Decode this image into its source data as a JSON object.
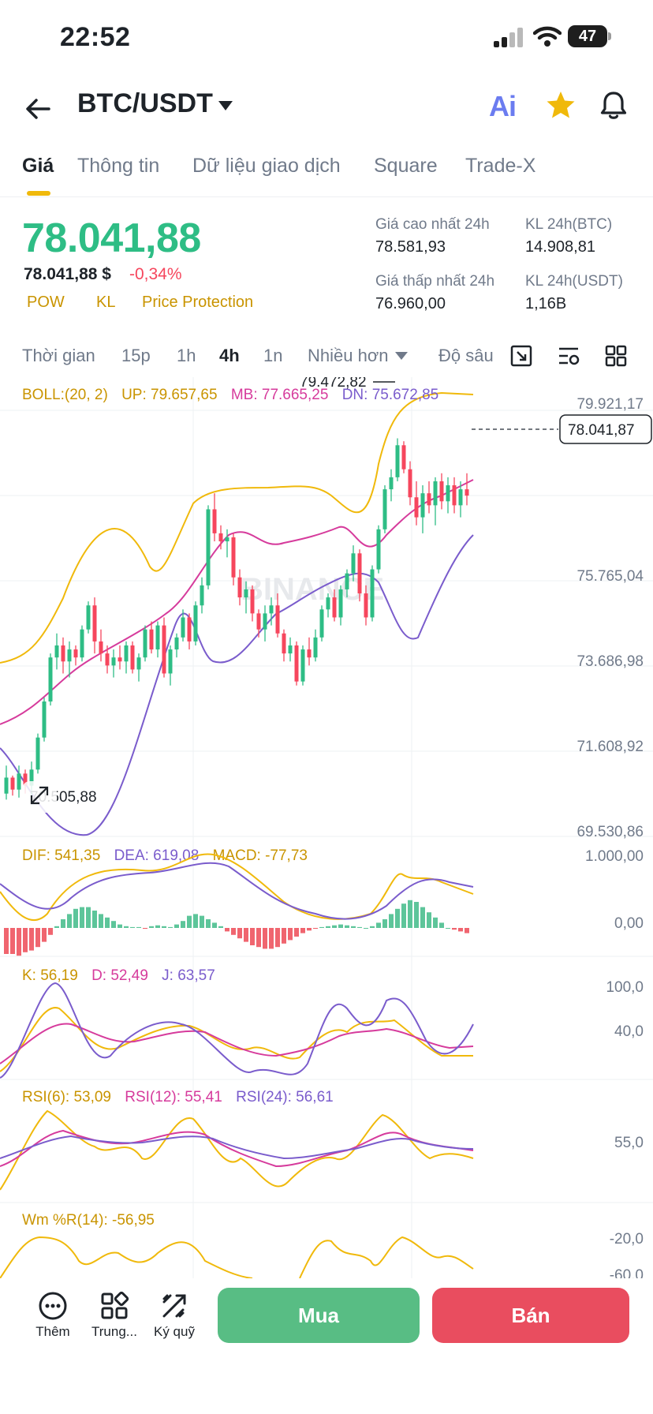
{
  "status_bar": {
    "time": "22:52",
    "battery": "47"
  },
  "header": {
    "pair": "BTC/USDT"
  },
  "tabs": [
    {
      "label": "Giá",
      "active": true
    },
    {
      "label": "Thông tin"
    },
    {
      "label": "Dữ liệu giao dịch"
    },
    {
      "label": "Square"
    },
    {
      "label": "Trade-X"
    }
  ],
  "price": {
    "last": "78.041,88",
    "fiat": "78.041,88 $",
    "change": "-0,34%",
    "chips": [
      "POW",
      "KL",
      "Price Protection"
    ],
    "stats": {
      "high_label": "Giá cao nhất 24h",
      "high": "78.581,93",
      "low_label": "Giá thấp nhất 24h",
      "low": "76.960,00",
      "vol_btc_label": "KL 24h(BTC)",
      "vol_btc": "14.908,81",
      "vol_usdt_label": "KL 24h(USDT)",
      "vol_usdt": "1,16B"
    }
  },
  "intervals": {
    "items": [
      "Thời gian",
      "15p",
      "1h",
      "4h",
      "1n",
      "Nhiều hơn",
      "Độ sâu"
    ],
    "active": "4h"
  },
  "indicators": {
    "boll": {
      "name": "BOLL:(20, 2)",
      "up": "UP: 79.657,65",
      "mb": "MB: 77.665,25",
      "dn": "DN: 75.672,85"
    },
    "macd": {
      "dif": "DIF: 541,35",
      "dea": "DEA: 619,08",
      "macd": "MACD: -77,73"
    },
    "kdj": {
      "k": "K: 56,19",
      "d": "D: 52,49",
      "j": "J: 63,57"
    },
    "rsi": {
      "r6": "RSI(6): 53,09",
      "r12": "RSI(12): 55,41",
      "r24": "RSI(24): 56,61"
    },
    "wr": {
      "label": "Wm %R(14): -56,95"
    }
  },
  "axes": {
    "main": [
      "79.921,17",
      "75.765,04",
      "73.686,98",
      "71.608,92",
      "69.530,86"
    ],
    "macd": [
      "1.000,00",
      "0,00"
    ],
    "kdj": [
      "100,0",
      "40,0"
    ],
    "rsi": [
      "55,0"
    ],
    "wr": [
      "-20,0",
      "-60,0"
    ]
  },
  "chart_data": {
    "type": "candlestick",
    "watermark": "BINANCE",
    "current_price_label": "78.041,87",
    "high_marker": "79.472,82",
    "low_marker": "70.505,88",
    "ylim": [
      69530.86,
      81000
    ],
    "candles": [
      [
        70600,
        71300,
        70450,
        71000
      ],
      [
        71000,
        71050,
        70550,
        70700
      ],
      [
        70700,
        71300,
        70500,
        71100
      ],
      [
        71100,
        71200,
        70600,
        70800
      ],
      [
        70800,
        71400,
        70505.88,
        71200
      ],
      [
        71200,
        72100,
        71100,
        72000
      ],
      [
        72000,
        73000,
        71900,
        72900
      ],
      [
        72900,
        74100,
        72800,
        74000
      ],
      [
        74000,
        74600,
        73700,
        74300
      ],
      [
        74300,
        74500,
        73600,
        73900
      ],
      [
        73900,
        74400,
        73500,
        74200
      ],
      [
        74200,
        74300,
        73800,
        74000
      ],
      [
        74000,
        74800,
        73900,
        74700
      ],
      [
        74700,
        75400,
        74600,
        75300
      ],
      [
        75300,
        75500,
        74100,
        74400
      ],
      [
        74400,
        74700,
        73900,
        74100
      ],
      [
        74100,
        74300,
        73600,
        73800
      ],
      [
        73800,
        74200,
        73500,
        74000
      ],
      [
        74000,
        74300,
        73700,
        73900
      ],
      [
        73900,
        74400,
        73600,
        74300
      ],
      [
        74300,
        74400,
        73600,
        73700
      ],
      [
        73700,
        74100,
        73400,
        74000
      ],
      [
        74000,
        74800,
        73900,
        74700
      ],
      [
        74700,
        74900,
        74100,
        74200
      ],
      [
        74200,
        74900,
        74000,
        74800
      ],
      [
        74800,
        75000,
        73500,
        73600
      ],
      [
        73600,
        74300,
        73300,
        74200
      ],
      [
        74200,
        74600,
        74000,
        74500
      ],
      [
        74500,
        75200,
        74400,
        75000
      ],
      [
        75000,
        75100,
        74200,
        74400
      ],
      [
        74400,
        75400,
        74300,
        75300
      ],
      [
        75300,
        76000,
        75100,
        75800
      ],
      [
        75800,
        77800,
        75700,
        77700
      ],
      [
        77700,
        78100,
        76900,
        77100
      ],
      [
        77100,
        77300,
        76700,
        76900
      ],
      [
        76900,
        77200,
        76500,
        77000
      ],
      [
        77000,
        77100,
        75800,
        76000
      ],
      [
        76000,
        76200,
        75300,
        75500
      ],
      [
        75500,
        75900,
        75100,
        75700
      ],
      [
        75700,
        75800,
        74900,
        75100
      ],
      [
        75100,
        75200,
        74500,
        74700
      ],
      [
        74700,
        75300,
        74400,
        75100
      ],
      [
        75100,
        75500,
        74800,
        75300
      ],
      [
        75300,
        75600,
        74500,
        74600
      ],
      [
        74600,
        74700,
        73900,
        74100
      ],
      [
        74100,
        74500,
        73900,
        74300
      ],
      [
        74300,
        74400,
        73300,
        73400
      ],
      [
        73400,
        74300,
        73300,
        74200
      ],
      [
        74200,
        74500,
        73800,
        74000
      ],
      [
        74000,
        74700,
        73900,
        74500
      ],
      [
        74500,
        75300,
        74400,
        75200
      ],
      [
        75200,
        75600,
        75000,
        75500
      ],
      [
        75500,
        75700,
        74900,
        75000
      ],
      [
        75000,
        75800,
        74800,
        75700
      ],
      [
        75700,
        76200,
        75500,
        76100
      ],
      [
        76100,
        76800,
        75900,
        76600
      ],
      [
        76600,
        76700,
        75400,
        75600
      ],
      [
        75600,
        75800,
        74800,
        75000
      ],
      [
        75000,
        76300,
        74900,
        76200
      ],
      [
        76200,
        77300,
        76100,
        77200
      ],
      [
        77200,
        78300,
        77100,
        78200
      ],
      [
        78200,
        78700,
        77900,
        78500
      ],
      [
        78500,
        79472.82,
        78400,
        79300
      ],
      [
        79300,
        79400,
        78600,
        78700
      ],
      [
        78700,
        78900,
        77800,
        78000
      ],
      [
        78000,
        78400,
        77300,
        77500
      ],
      [
        77500,
        78300,
        77100,
        78100
      ],
      [
        78100,
        78400,
        77600,
        77800
      ],
      [
        77800,
        78500,
        77300,
        78400
      ],
      [
        78400,
        78600,
        77700,
        77900
      ],
      [
        77900,
        78500,
        77600,
        78300
      ],
      [
        78300,
        78500,
        77600,
        77800
      ],
      [
        77800,
        78400,
        77500,
        78200
      ],
      [
        78200,
        78600,
        77800,
        78041.87
      ]
    ]
  },
  "bottom_bar": {
    "more": "Thêm",
    "center": "Trung...",
    "margin": "Ký quỹ",
    "buy": "Mua",
    "sell": "Bán"
  }
}
